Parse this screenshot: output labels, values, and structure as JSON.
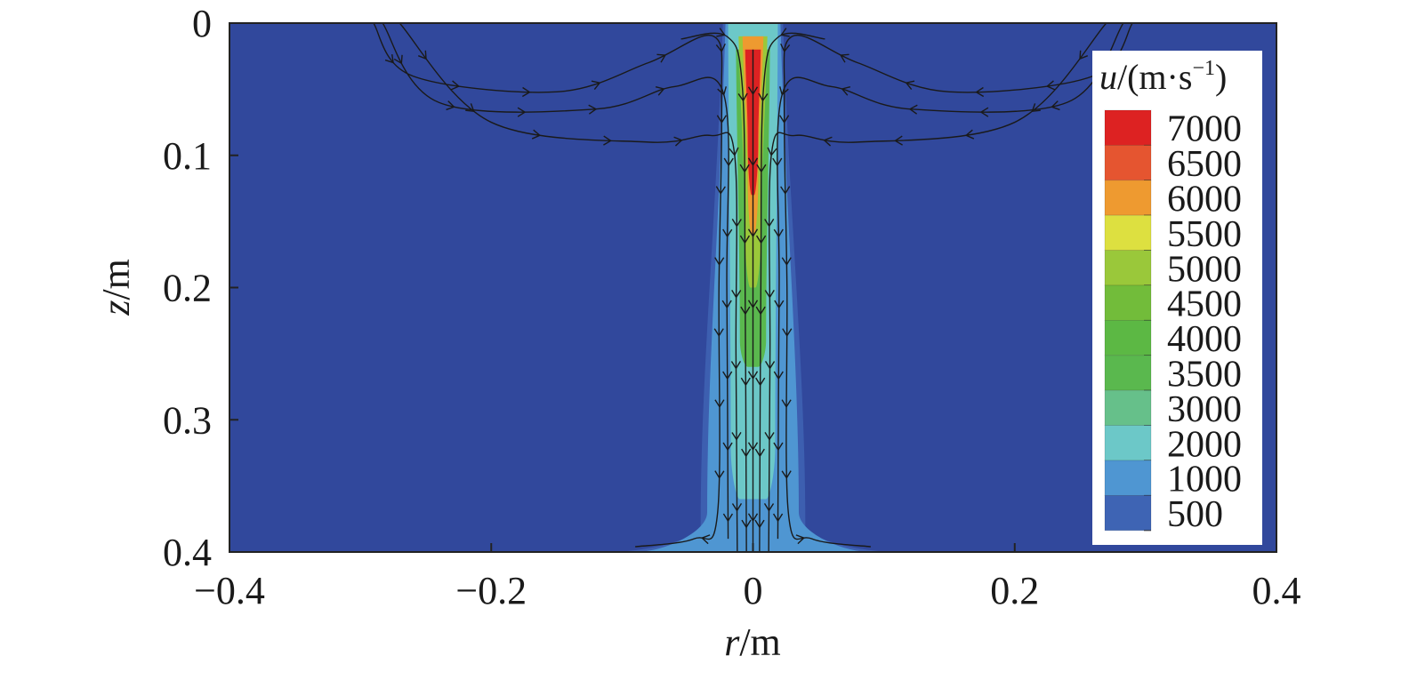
{
  "chart_data": {
    "type": "heatmap",
    "title": "",
    "xlabel_var": "r",
    "xlabel_unit": "/m",
    "ylabel_var": "z",
    "ylabel_unit": "/m",
    "xlim": [
      -0.4,
      0.4
    ],
    "ylim": [
      0,
      0.4
    ],
    "y_inverted": true,
    "x_ticks": [
      -0.4,
      -0.2,
      0,
      0.2,
      0.4
    ],
    "x_tick_labels": [
      "−0.4",
      "−0.2",
      "0",
      "0.2",
      "0.4"
    ],
    "y_ticks": [
      0,
      0.1,
      0.2,
      0.3,
      0.4
    ],
    "y_tick_labels": [
      "0",
      "0.1",
      "0.2",
      "0.3",
      "0.4"
    ],
    "colorbar": {
      "title_var": "u",
      "title_unit": "/(m·s",
      "title_exp": "−1",
      "title_close": ")",
      "placement": "top-right",
      "levels": [
        7000,
        6500,
        6000,
        5500,
        5000,
        4500,
        4000,
        3500,
        3000,
        2000,
        1000,
        500
      ],
      "labels": [
        "7000",
        "6500",
        "6000",
        "5500",
        "5000",
        "4500",
        "4000",
        "3500",
        "3000",
        "2000",
        "1000",
        "500"
      ],
      "colors": [
        "#dd2222",
        "#e55530",
        "#ee9a30",
        "#dde040",
        "#9ac83a",
        "#72bc3a",
        "#5cb844",
        "#5ab84e",
        "#66c08a",
        "#6cc8c8",
        "#4f96d2",
        "#3e64b4"
      ]
    },
    "background_color": "#31489c",
    "jet_contours": [
      {
        "level": 500,
        "color": "#3d5fb0",
        "z": [
          0,
          0.38,
          0.4
        ],
        "r_half": [
          0.023,
          0.04,
          0.11
        ]
      },
      {
        "level": 1000,
        "color": "#4f96d2",
        "z": [
          0,
          0.37,
          0.4
        ],
        "r_half": [
          0.021,
          0.035,
          0.09
        ]
      },
      {
        "level": 2000,
        "color": "#6cc8c8",
        "z": [
          0,
          0.32,
          0.36
        ],
        "r_half": [
          0.019,
          0.017,
          0.01
        ]
      },
      {
        "level": 3000,
        "color": "#5ab84e",
        "z": [
          0.02,
          0.24,
          0.26
        ],
        "r_half": [
          0.013,
          0.01,
          0.004
        ]
      },
      {
        "level": 5000,
        "color": "#9ac83a",
        "z": [
          0.01,
          0.16,
          0.2
        ],
        "r_half": [
          0.011,
          0.006,
          0.002
        ]
      },
      {
        "level": 6000,
        "color": "#ee9a30",
        "z": [
          0.01,
          0.12,
          0.16
        ],
        "r_half": [
          0.008,
          0.004,
          0.001
        ]
      },
      {
        "level": 7000,
        "color": "#dd2222",
        "z": [
          0.02,
          0.09,
          0.13
        ],
        "r_half": [
          0.006,
          0.004,
          0.001
        ]
      }
    ],
    "streamlines": [
      {
        "points": [
          [
            -0.29,
            0
          ],
          [
            -0.26,
            0.04
          ],
          [
            -0.15,
            0.052
          ],
          [
            -0.08,
            0.03
          ],
          [
            -0.03,
            0.01
          ],
          [
            -0.024,
            0.06
          ],
          [
            -0.026,
            0.2
          ],
          [
            -0.027,
            0.37
          ],
          [
            -0.045,
            0.39
          ],
          [
            -0.09,
            0.396
          ]
        ]
      },
      {
        "points": [
          [
            -0.283,
            0
          ],
          [
            -0.24,
            0.06
          ],
          [
            -0.12,
            0.065
          ],
          [
            -0.06,
            0.048
          ],
          [
            -0.022,
            0.055
          ],
          [
            -0.02,
            0.2
          ],
          [
            -0.019,
            0.39
          ]
        ]
      },
      {
        "points": [
          [
            -0.27,
            0
          ],
          [
            -0.2,
            0.075
          ],
          [
            -0.08,
            0.09
          ],
          [
            -0.032,
            0.085
          ],
          [
            -0.014,
            0.1
          ],
          [
            -0.013,
            0.25
          ],
          [
            -0.012,
            0.4
          ]
        ]
      },
      {
        "points": [
          [
            -0.055,
            0.012
          ],
          [
            -0.02,
            0.01
          ],
          [
            -0.008,
            0.05
          ],
          [
            -0.006,
            0.2
          ],
          [
            -0.005,
            0.4
          ]
        ]
      },
      {
        "points": [
          [
            0.29,
            0
          ],
          [
            0.26,
            0.04
          ],
          [
            0.15,
            0.052
          ],
          [
            0.08,
            0.03
          ],
          [
            0.03,
            0.01
          ],
          [
            0.024,
            0.06
          ],
          [
            0.026,
            0.2
          ],
          [
            0.027,
            0.37
          ],
          [
            0.045,
            0.39
          ],
          [
            0.09,
            0.396
          ]
        ]
      },
      {
        "points": [
          [
            0.283,
            0
          ],
          [
            0.24,
            0.06
          ],
          [
            0.12,
            0.065
          ],
          [
            0.06,
            0.048
          ],
          [
            0.022,
            0.055
          ],
          [
            0.02,
            0.2
          ],
          [
            0.019,
            0.39
          ]
        ]
      },
      {
        "points": [
          [
            0.27,
            0
          ],
          [
            0.2,
            0.075
          ],
          [
            0.08,
            0.09
          ],
          [
            0.032,
            0.085
          ],
          [
            0.014,
            0.1
          ],
          [
            0.013,
            0.25
          ],
          [
            0.012,
            0.4
          ]
        ]
      },
      {
        "points": [
          [
            0.055,
            0.012
          ],
          [
            0.02,
            0.01
          ],
          [
            0.008,
            0.05
          ],
          [
            0.006,
            0.2
          ],
          [
            0.005,
            0.4
          ]
        ]
      },
      {
        "points": [
          [
            0,
            0.02
          ],
          [
            0,
            0.4
          ]
        ]
      }
    ],
    "grid": false,
    "legend": "none"
  }
}
